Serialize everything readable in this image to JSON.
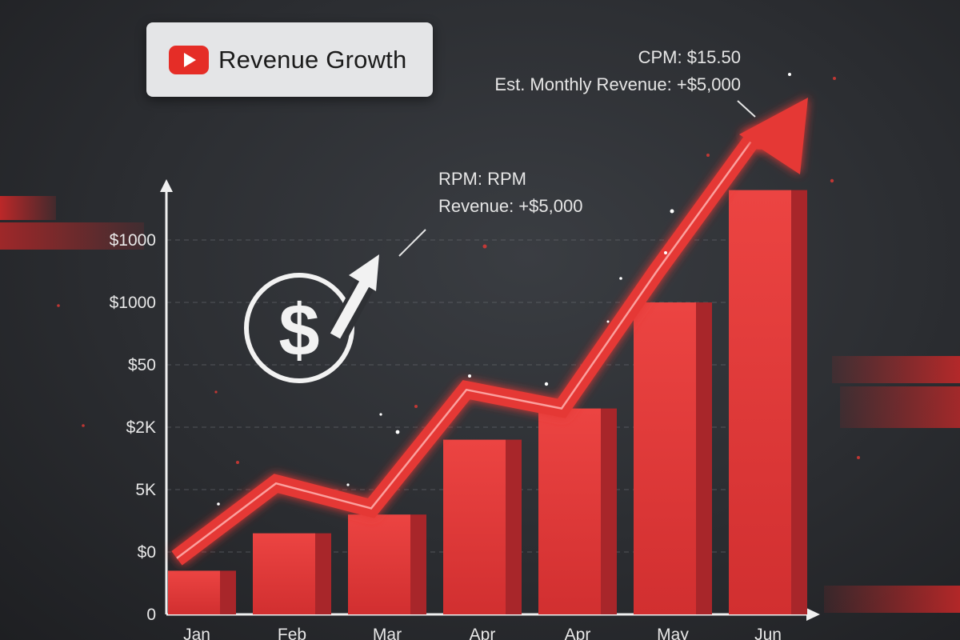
{
  "header": {
    "title": "Revenue Growth",
    "logo_icon": "youtube-play-icon"
  },
  "annotations": {
    "top_line1": "CPM: $15.50",
    "top_line2": "Est. Monthly Revenue: +$5,000",
    "mid_line1": "RPM: RPM",
    "mid_line2": "Revenue: +$5,000"
  },
  "center_icon": "dollar-growth-icon",
  "colors": {
    "accent": "#e53935",
    "bar_front": "#e8403f",
    "bar_side": "#a8262a",
    "background": "#2b2d31"
  },
  "chart_data": {
    "type": "bar",
    "title": "Revenue Growth",
    "categories": [
      "Jan",
      "Feb",
      "Mar",
      "Apr",
      "Apr",
      "May",
      "Jun"
    ],
    "values": [
      0.7,
      1.3,
      1.6,
      2.8,
      3.3,
      5.0,
      6.8
    ],
    "ytick_labels": [
      "0",
      "$0",
      "5K",
      "$2K",
      "$50",
      "$1000",
      "$1000"
    ],
    "ylim": [
      0,
      7.9
    ],
    "trend_line": [
      0.9,
      2.1,
      1.7,
      3.6,
      3.3,
      5.5,
      7.6
    ],
    "grid": true,
    "legend": "none"
  }
}
